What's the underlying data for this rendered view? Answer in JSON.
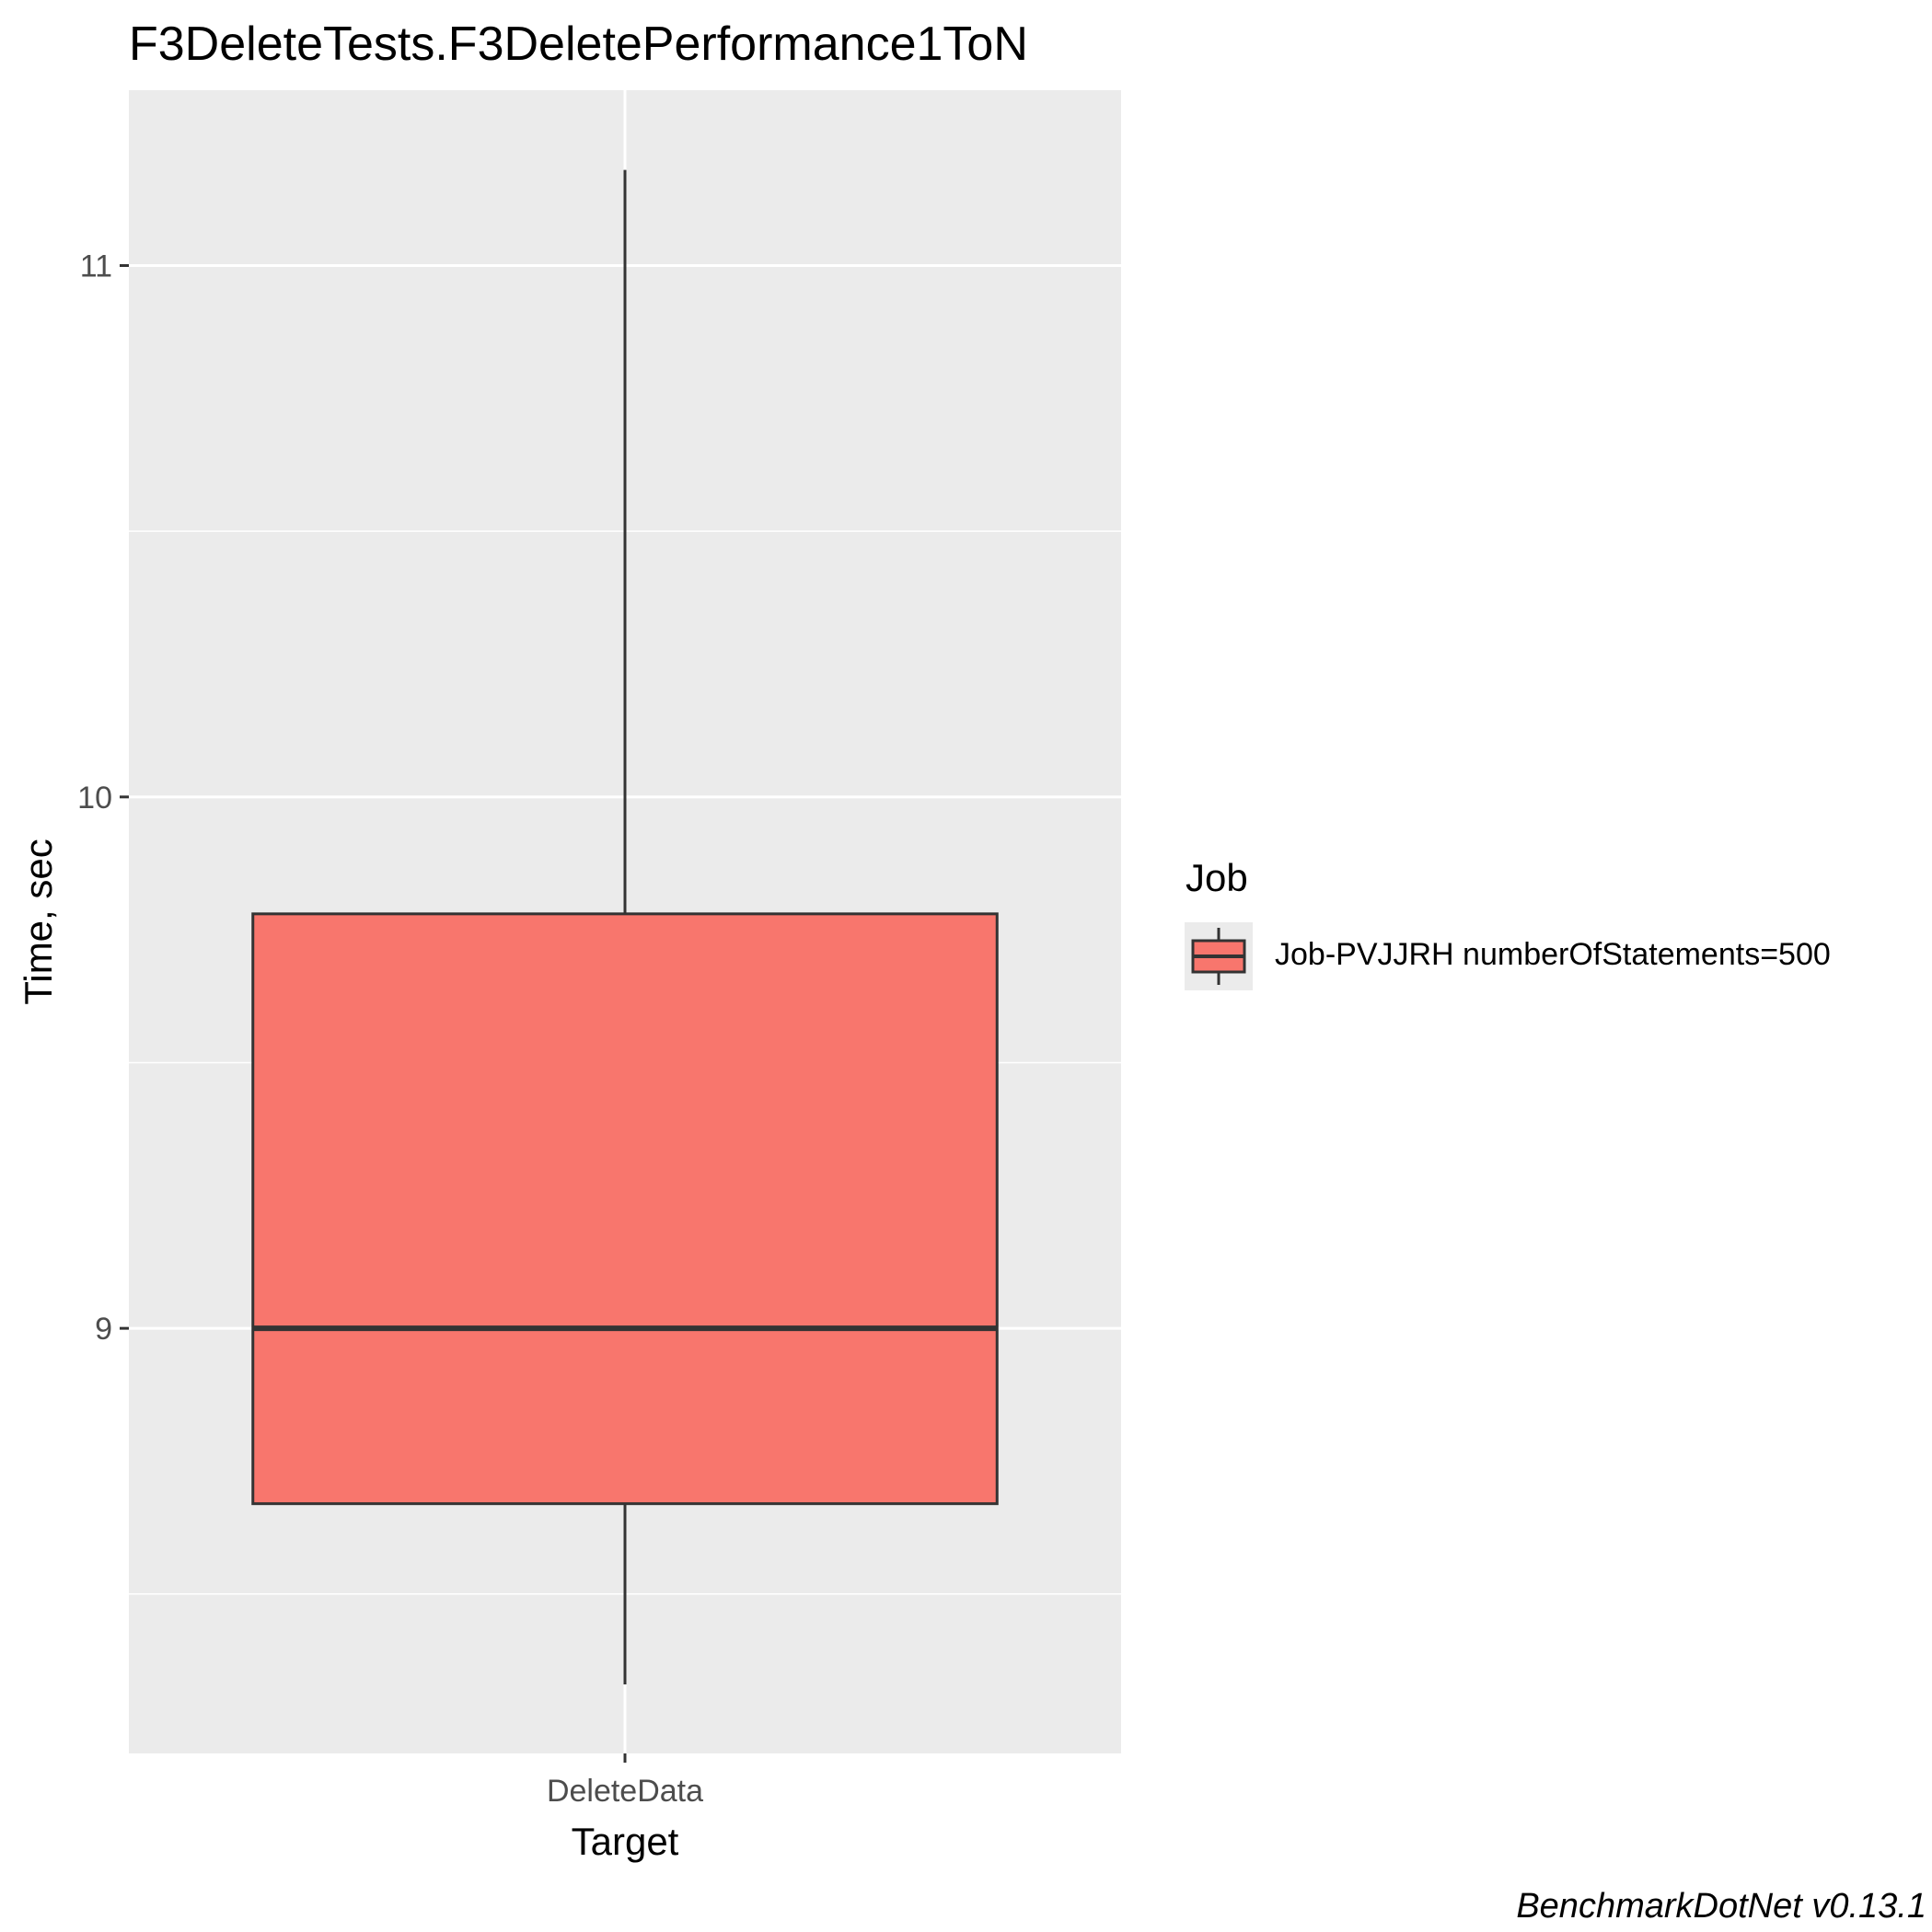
{
  "chart_data": {
    "type": "boxplot",
    "title": "F3DeleteTests.F3DeletePerformance1ToN",
    "xlabel": "Target",
    "ylabel": "Time, sec",
    "categories": [
      "DeleteData"
    ],
    "yticks": [
      9,
      10,
      11
    ],
    "ylim": [
      8.2,
      11.33
    ],
    "grid": true,
    "legend": {
      "title": "Job",
      "position": "right",
      "entries": [
        "Job-PVJJRH numberOfStatements=500"
      ]
    },
    "series": [
      {
        "name": "Job-PVJJRH numberOfStatements=500",
        "color": "#f8766d",
        "boxes": [
          {
            "category": "DeleteData",
            "min": 8.33,
            "q1": 8.67,
            "median": 9.0,
            "q3": 9.78,
            "max": 11.18
          }
        ]
      }
    ]
  },
  "footer": {
    "credit": "BenchmarkDotNet v0.13.1"
  }
}
